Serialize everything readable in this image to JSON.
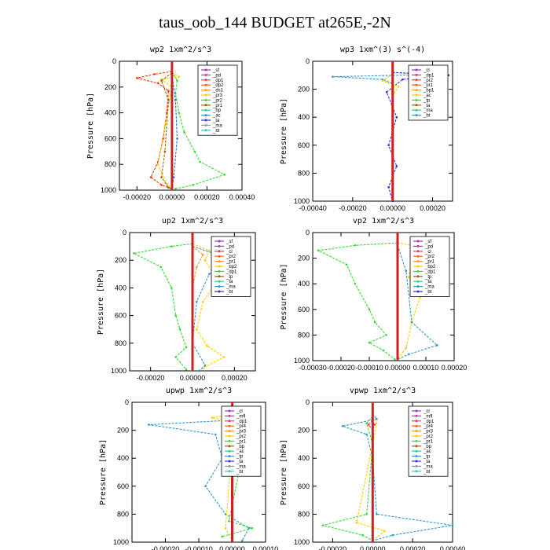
{
  "figure": {
    "title": "taus_oob_144  BUDGET at265E,-2N"
  },
  "chart_data": [
    {
      "type": "line",
      "title": "wp2   1xm^2/s^3",
      "ylabel": "Pressure [hPa]",
      "xlim": [
        -0.0003,
        0.0004
      ],
      "ylim": [
        1000,
        0
      ],
      "xticks": [
        -0.0002,
        0.0,
        0.0002,
        0.0004
      ],
      "xtick_labels": [
        "-0.00020",
        "0.00000",
        "0.00020",
        "0.00040"
      ],
      "yticks": [
        0,
        200,
        400,
        600,
        800,
        1000
      ],
      "legend": [
        "_sf",
        "_pd",
        "_dp1",
        "_dp2",
        "_ds1",
        "_pr3",
        "_pr2",
        "_pr1",
        "_bp",
        "_ac",
        "_ta",
        "_ma",
        "_bt"
      ],
      "series": [
        {
          "name": "_pr3",
          "color": "#ff3300",
          "points": [
            [
              0,
              80
            ],
            [
              -0.0001,
              100
            ],
            [
              -0.0002,
              130
            ],
            [
              -8e-05,
              170
            ],
            [
              -2e-05,
              230
            ],
            [
              -3e-05,
              400
            ],
            [
              -5e-05,
              600
            ],
            [
              -8e-05,
              780
            ],
            [
              -0.00012,
              900
            ],
            [
              -6e-05,
              960
            ],
            [
              0,
              990
            ]
          ]
        },
        {
          "name": "_ac",
          "color": "#33dd33",
          "points": [
            [
              0,
              80
            ],
            [
              3e-05,
              150
            ],
            [
              2e-05,
              250
            ],
            [
              4e-05,
              400
            ],
            [
              7e-05,
              550
            ],
            [
              0.00013,
              700
            ],
            [
              0.00016,
              780
            ],
            [
              0.0003,
              880
            ],
            [
              0.00012,
              960
            ],
            [
              2e-05,
              990
            ]
          ]
        },
        {
          "name": "_pr1",
          "color": "#ffcc00",
          "points": [
            [
              0,
              90
            ],
            [
              4e-05,
              120
            ],
            [
              -6e-05,
              140
            ],
            [
              0,
              200
            ],
            [
              -4e-05,
              500
            ],
            [
              -8e-05,
              800
            ],
            [
              -3e-05,
              950
            ],
            [
              0,
              990
            ]
          ]
        },
        {
          "name": "_bp",
          "color": "#996600",
          "points": [
            [
              0,
              90
            ],
            [
              -6e-05,
              150
            ],
            [
              -2e-05,
              300
            ],
            [
              -4e-05,
              700
            ],
            [
              -6e-05,
              900
            ],
            [
              -2e-05,
              980
            ]
          ]
        },
        {
          "name": "_ta",
          "color": "#2277cc",
          "points": [
            [
              0,
              100
            ],
            [
              2e-05,
              300
            ],
            [
              3e-05,
              600
            ],
            [
              1e-05,
              900
            ],
            [
              0,
              990
            ]
          ]
        },
        {
          "name": "_bt",
          "color": "#cc2222",
          "points": [
            [
              0,
              0
            ],
            [
              0,
              1000
            ]
          ]
        }
      ]
    },
    {
      "type": "line",
      "title": "wp3   1xm^(3) s^(-4)",
      "ylabel": "Pressure [hPa]",
      "xlim": [
        -0.0004,
        0.0003
      ],
      "ylim": [
        1000,
        0
      ],
      "xticks": [
        -0.0004,
        -0.0002,
        0.0,
        0.0002
      ],
      "xtick_labels": [
        "-0.00040",
        "-0.00020",
        "0.00000",
        "0.00020"
      ],
      "yticks": [
        0,
        200,
        400,
        600,
        800,
        1000
      ],
      "legend": [
        "_cl",
        "_dp1",
        "_pr2",
        "_pr1",
        "_bp1",
        "_ac",
        "_tp",
        "_ta",
        "_ma",
        "_bt"
      ],
      "series": [
        {
          "name": "_tp",
          "color": "#3399cc",
          "points": [
            [
              0,
              80
            ],
            [
              0.0002,
              95
            ],
            [
              -0.0003,
              110
            ],
            [
              -5e-05,
              130
            ],
            [
              0,
              160
            ]
          ]
        },
        {
          "name": "_ta",
          "color": "#3333cc",
          "points": [
            [
              0,
              80
            ],
            [
              0.00028,
              100
            ],
            [
              5e-05,
              130
            ],
            [
              -3e-05,
              220
            ],
            [
              2e-05,
              400
            ],
            [
              -2e-05,
              600
            ],
            [
              2e-05,
              750
            ],
            [
              -2e-05,
              900
            ],
            [
              0,
              1000
            ]
          ]
        },
        {
          "name": "_pr1",
          "color": "#ffcc00",
          "points": [
            [
              0,
              90
            ],
            [
              -5e-05,
              140
            ],
            [
              3e-05,
              180
            ],
            [
              0,
              250
            ]
          ]
        },
        {
          "name": "_bt",
          "color": "#cc2222",
          "points": [
            [
              0,
              0
            ],
            [
              0,
              1000
            ]
          ]
        }
      ]
    },
    {
      "type": "line",
      "title": "up2   1xm^2/s^3",
      "ylabel": "Pressure [hPa]",
      "xlim": [
        -0.0003,
        0.0003
      ],
      "ylim": [
        1000,
        0
      ],
      "xticks": [
        -0.0002,
        0.0,
        0.0002
      ],
      "xtick_labels": [
        "-0.00020",
        "0.00000",
        "0.00020"
      ],
      "yticks": [
        0,
        200,
        400,
        600,
        800,
        1000
      ],
      "legend": [
        "_sf",
        "_pd",
        "_cl",
        "_pr2",
        "_pr1",
        "_bp2",
        "_dp1",
        "_tp",
        "_ta",
        "_ma",
        "_bt"
      ],
      "series": [
        {
          "name": "_pr1",
          "color": "#33dd33",
          "points": [
            [
              0,
              80
            ],
            [
              -0.0001,
              100
            ],
            [
              -0.00028,
              150
            ],
            [
              -0.00015,
              250
            ],
            [
              -0.0001,
              400
            ],
            [
              -8e-05,
              600
            ],
            [
              -6e-05,
              700
            ],
            [
              -3e-05,
              830
            ],
            [
              -8e-05,
              900
            ],
            [
              -3e-05,
              990
            ]
          ]
        },
        {
          "name": "_cl",
          "color": "#ffcc00",
          "points": [
            [
              0,
              80
            ],
            [
              8e-05,
              130
            ],
            [
              6e-05,
              200
            ],
            [
              0.00012,
              350
            ],
            [
              5e-05,
              500
            ],
            [
              2e-05,
              700
            ],
            [
              7e-05,
              820
            ],
            [
              0.00015,
              900
            ],
            [
              5e-05,
              980
            ]
          ]
        },
        {
          "name": "_tp",
          "color": "#3399cc",
          "points": [
            [
              0,
              100
            ],
            [
              0.00018,
              190
            ],
            [
              8e-05,
              300
            ],
            [
              2e-05,
              500
            ],
            [
              0,
              800
            ],
            [
              6e-05,
              960
            ],
            [
              3e-05,
              1000
            ]
          ]
        },
        {
          "name": "_pr2",
          "color": "#ff9933",
          "points": [
            [
              0,
              100
            ],
            [
              5e-05,
              160
            ],
            [
              2e-05,
              250
            ],
            [
              0,
              400
            ]
          ]
        },
        {
          "name": "_bt",
          "color": "#cc2222",
          "points": [
            [
              0,
              0
            ],
            [
              0,
              1000
            ]
          ]
        }
      ]
    },
    {
      "type": "line",
      "title": "vp2   1xm^2/s^3",
      "ylabel": "Pressure [hPa]",
      "xlim": [
        -0.0003,
        0.0002
      ],
      "ylim": [
        1000,
        0
      ],
      "xticks": [
        -0.0003,
        -0.0002,
        -0.0001,
        0.0,
        0.0001,
        0.0002
      ],
      "xtick_labels": [
        "-0.00030",
        "-0.00020",
        "-0.00010",
        "0.00000",
        "0.00010",
        "0.00020"
      ],
      "yticks": [
        0,
        200,
        400,
        600,
        800,
        1000
      ],
      "legend": [
        "_sf",
        "_pd",
        "_cl",
        "_pr2",
        "_pr1",
        "_bp2",
        "_dp1",
        "_tp",
        "_ta",
        "_ma",
        "_bt"
      ],
      "series": [
        {
          "name": "_pr1",
          "color": "#33dd33",
          "points": [
            [
              0,
              80
            ],
            [
              -0.00015,
              100
            ],
            [
              -0.00028,
              140
            ],
            [
              -0.00018,
              250
            ],
            [
              -0.00015,
              400
            ],
            [
              -0.0001,
              600
            ],
            [
              -8e-05,
              700
            ],
            [
              -4e-05,
              800
            ],
            [
              -0.0001,
              860
            ],
            [
              -5e-05,
              920
            ],
            [
              -1e-05,
              990
            ]
          ]
        },
        {
          "name": "_cl",
          "color": "#ffcc00",
          "points": [
            [
              0,
              80
            ],
            [
              0.0001,
              120
            ],
            [
              5e-05,
              200
            ],
            [
              4e-05,
              350
            ],
            [
              8e-05,
              500
            ],
            [
              5e-05,
              700
            ],
            [
              3e-05,
              900
            ],
            [
              0,
              990
            ]
          ]
        },
        {
          "name": "_tp",
          "color": "#3399cc",
          "points": [
            [
              0,
              100
            ],
            [
              3e-05,
              300
            ],
            [
              5e-05,
              700
            ],
            [
              0.00014,
              880
            ],
            [
              4e-05,
              950
            ],
            [
              0,
              990
            ]
          ]
        },
        {
          "name": "_bt",
          "color": "#cc2222",
          "points": [
            [
              0,
              0
            ],
            [
              0,
              1000
            ]
          ]
        }
      ]
    },
    {
      "type": "line",
      "title": "upwp   1xm^2/s^3",
      "ylabel": "Pressure [hPa]",
      "xlim": [
        -0.0003,
        0.0001
      ],
      "ylim": [
        1000,
        0
      ],
      "xticks": [
        -0.0002,
        -0.0001,
        0.0,
        0.0001
      ],
      "xtick_labels": [
        "-0.00020",
        "-0.00010",
        "0.00000",
        "0.00010"
      ],
      "yticks": [
        0,
        200,
        400,
        600,
        800,
        1000
      ],
      "legend": [
        "_cl",
        "_mfl",
        "_dp1",
        "_pr4",
        "_pr3",
        "_pr2",
        "_pr1",
        "_bp",
        "_ac",
        "_tp",
        "_ta",
        "_ma",
        "_bt"
      ],
      "series": [
        {
          "name": "_tp",
          "color": "#3399cc",
          "points": [
            [
              0,
              80
            ],
            [
              6e-05,
              120
            ],
            [
              -0.00025,
              160
            ],
            [
              -5e-05,
              230
            ],
            [
              -3e-05,
              400
            ],
            [
              -8e-05,
              600
            ],
            [
              -2e-05,
              800
            ],
            [
              5e-05,
              900
            ],
            [
              3e-05,
              990
            ]
          ]
        },
        {
          "name": "_pr1",
          "color": "#33dd33",
          "points": [
            [
              0,
              90
            ],
            [
              4e-05,
              140
            ],
            [
              -3e-05,
              180
            ],
            [
              0,
              260
            ],
            [
              2e-05,
              500
            ],
            [
              -1e-05,
              850
            ],
            [
              6e-05,
              900
            ],
            [
              -3e-05,
              960
            ]
          ]
        },
        {
          "name": "_pr2",
          "color": "#ffcc00",
          "points": [
            [
              0,
              90
            ],
            [
              -6e-05,
              110
            ],
            [
              5e-05,
              170
            ],
            [
              0,
              300
            ],
            [
              -2e-05,
              900
            ],
            [
              0,
              990
            ]
          ]
        },
        {
          "name": "_dp1",
          "color": "#ff3366",
          "points": [
            [
              0,
              100
            ],
            [
              -3e-05,
              160
            ],
            [
              0,
              220
            ],
            [
              2e-05,
              160
            ],
            [
              0,
              100
            ]
          ]
        },
        {
          "name": "_bt",
          "color": "#cc2222",
          "points": [
            [
              0,
              0
            ],
            [
              0,
              1000
            ]
          ]
        }
      ]
    },
    {
      "type": "line",
      "title": "vpwp   1xm^2/s^3",
      "ylabel": "Pressure [hPa]",
      "xlim": [
        -0.0003,
        0.0004
      ],
      "ylim": [
        1000,
        0
      ],
      "xticks": [
        -0.0002,
        0.0,
        0.0002,
        0.0004
      ],
      "xtick_labels": [
        "-0.00020",
        "0.00000",
        "0.00020",
        "0.00040"
      ],
      "yticks": [
        0,
        200,
        400,
        600,
        800,
        1000
      ],
      "legend": [
        "_cl",
        "_mfl",
        "_dp1",
        "_pr4",
        "_pr3",
        "_pr2",
        "_pr1",
        "_bp",
        "_ac",
        "_tp",
        "_ta",
        "_ma",
        "_bt"
      ],
      "series": [
        {
          "name": "_tp",
          "color": "#3399cc",
          "points": [
            [
              0,
              80
            ],
            [
              2e-05,
              120
            ],
            [
              -0.00015,
              170
            ],
            [
              -3e-05,
              230
            ],
            [
              0,
              400
            ],
            [
              2e-05,
              800
            ],
            [
              0.0004,
              880
            ],
            [
              0.0001,
              950
            ],
            [
              0,
              990
            ]
          ]
        },
        {
          "name": "_pr1",
          "color": "#33dd33",
          "points": [
            [
              0,
              100
            ],
            [
              -3e-05,
              150
            ],
            [
              0,
              300
            ],
            [
              -3e-05,
              800
            ],
            [
              -0.00025,
              880
            ],
            [
              -5e-05,
              950
            ],
            [
              0,
              990
            ]
          ]
        },
        {
          "name": "_pr2",
          "color": "#ffcc00",
          "points": [
            [
              0,
              100
            ],
            [
              2e-05,
              150
            ],
            [
              0,
              300
            ],
            [
              -8e-05,
              860
            ],
            [
              6e-05,
              920
            ],
            [
              0,
              990
            ]
          ]
        },
        {
          "name": "_dp1",
          "color": "#ff3366",
          "points": [
            [
              0,
              130
            ],
            [
              -2e-05,
              160
            ],
            [
              0,
              200
            ],
            [
              1e-05,
              160
            ],
            [
              0,
              130
            ]
          ]
        },
        {
          "name": "_bt",
          "color": "#cc2222",
          "points": [
            [
              0,
              0
            ],
            [
              0,
              1000
            ]
          ]
        }
      ]
    }
  ]
}
